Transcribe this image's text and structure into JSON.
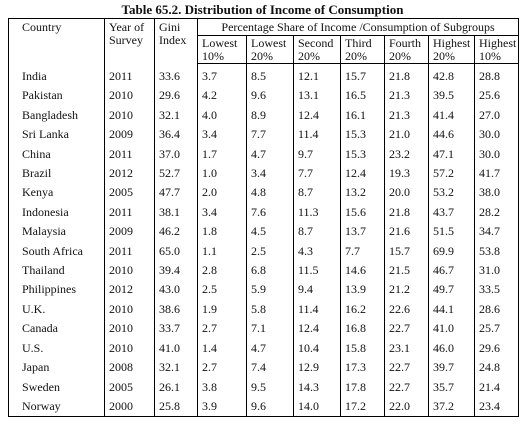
{
  "title": "Table 65.2.  Distribution of Income of Consumption",
  "headers": {
    "country": "Country",
    "year": [
      "Year of",
      "Survey"
    ],
    "gini": [
      "Gini",
      "Index"
    ],
    "group": "Percentage Share of Income /Consumption of Subgroups",
    "sub": [
      [
        "Lowest",
        "10%"
      ],
      [
        "Lowest",
        "20%"
      ],
      [
        "Second",
        "20%"
      ],
      [
        "Third",
        "20%"
      ],
      [
        "Fourth",
        "20%"
      ],
      [
        "Highest",
        "20%"
      ],
      [
        "Highest",
        "10%"
      ]
    ]
  },
  "rows": [
    [
      "India",
      "2011",
      "33.6",
      "3.7",
      "8.5",
      "12.1",
      "15.7",
      "21.8",
      "42.8",
      "28.8"
    ],
    [
      "Pakistan",
      "2010",
      "29.6",
      "4.2",
      "9.6",
      "13.1",
      "16.5",
      "21.3",
      "39.5",
      "25.6"
    ],
    [
      "Bangladesh",
      "2010",
      "32.1",
      "4.0",
      "8.9",
      "12.4",
      "16.1",
      "21.3",
      "41.4",
      "27.0"
    ],
    [
      "Sri Lanka",
      "2009",
      "36.4",
      "3.4",
      "7.7",
      "11.4",
      "15.3",
      "21.0",
      "44.6",
      "30.0"
    ],
    [
      "China",
      "2011",
      "37.0",
      "1.7",
      "4.7",
      "9.7",
      "15.3",
      "23.2",
      "47.1",
      "30.0"
    ],
    [
      "Brazil",
      "2012",
      "52.7",
      "1.0",
      "3.4",
      "7.7",
      "12.4",
      "19.3",
      "57.2",
      "41.7"
    ],
    [
      "Kenya",
      "2005",
      "47.7",
      "2.0",
      "4.8",
      "8.7",
      "13.2",
      "20.0",
      "53.2",
      "38.0"
    ],
    [
      "Indonesia",
      "2011",
      "38.1",
      "3.4",
      "7.6",
      "11.3",
      "15.6",
      "21.8",
      "43.7",
      "28.2"
    ],
    [
      "Malaysia",
      "2009",
      "46.2",
      "1.8",
      "4.5",
      "8.7",
      "13.7",
      "21.6",
      "51.5",
      "34.7"
    ],
    [
      "South Africa",
      "2011",
      "65.0",
      "1.1",
      "2.5",
      "4.3",
      "7.7",
      "15.7",
      "69.9",
      "53.8"
    ],
    [
      "Thailand",
      "2010",
      "39.4",
      "2.8",
      "6.8",
      "11.5",
      "14.6",
      "21.5",
      "46.7",
      "31.0"
    ],
    [
      "Philippines",
      "2012",
      "43.0",
      "2.5",
      "5.9",
      "9.4",
      "13.9",
      "21.2",
      "49.7",
      "33.5"
    ],
    [
      "U.K.",
      "2010",
      "38.6",
      "1.9",
      "5.8",
      "11.4",
      "16.2",
      "22.6",
      "44.1",
      "28.6"
    ],
    [
      "Canada",
      "2010",
      "33.7",
      "2.7",
      "7.1",
      "12.4",
      "16.8",
      "22.7",
      "41.0",
      "25.7"
    ],
    [
      "U.S.",
      "2010",
      "41.0",
      "1.4",
      "4.7",
      "10.4",
      "15.8",
      "23.1",
      "46.0",
      "29.6"
    ],
    [
      "Japan",
      "2008",
      "32.1",
      "2.7",
      "7.4",
      "12.9",
      "17.3",
      "22.7",
      "39.7",
      "24.8"
    ],
    [
      "Sweden",
      "2005",
      "26.1",
      "3.8",
      "9.5",
      "14.3",
      "17.8",
      "22.7",
      "35.7",
      "21.4"
    ],
    [
      "Norway",
      "2000",
      "25.8",
      "3.9",
      "9.6",
      "14.0",
      "17.2",
      "22.0",
      "37.2",
      "23.4"
    ]
  ]
}
